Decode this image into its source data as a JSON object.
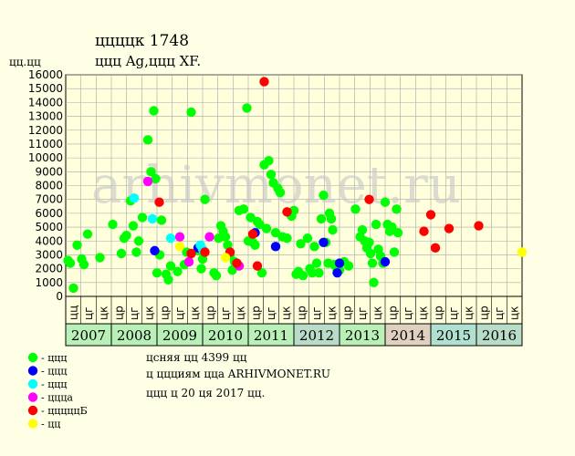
{
  "header": {
    "title": "ццццк 1748",
    "subtitle": "ццц Ag,ццц XF.",
    "yunit": "цц.цц"
  },
  "watermark": "arhivmonet.ru",
  "footer": {
    "line1": "цcняя цц 4399 цц",
    "line2": "ц ццциям цца ARHIVMONET.RU",
    "line3": "ццц ц 20 ця 2017 цц."
  },
  "colors": {
    "background": "#ffffe6",
    "plot": "#ffffdc",
    "grid": "#a8a8a8"
  },
  "chart_data": {
    "type": "scatter",
    "ylim": [
      0,
      16000
    ],
    "yticks": [
      0,
      1000,
      2000,
      3000,
      4000,
      5000,
      6000,
      7000,
      8000,
      9000,
      10000,
      11000,
      12000,
      13000,
      14000,
      15000,
      16000
    ],
    "grid": true,
    "legend_position": "bottom-left",
    "x_month_labels": [
      "цц",
      "цг",
      "цк",
      "цр",
      "цг",
      "цк",
      "цр",
      "цг",
      "цк",
      "цр",
      "цг",
      "цк",
      "цр",
      "цг",
      "цк",
      "цр",
      "цг",
      "цк",
      "цр",
      "цг",
      "цк",
      "цр",
      "цг",
      "цк",
      "цр",
      "цг",
      "цк",
      "цр",
      "цг",
      "цк"
    ],
    "years": [
      {
        "label": "2007",
        "color": "#b8f0b8"
      },
      {
        "label": "2008",
        "color": "#b8f0b8"
      },
      {
        "label": "2009",
        "color": "#b8f0b8"
      },
      {
        "label": "2010",
        "color": "#b8f0b8"
      },
      {
        "label": "2011",
        "color": "#b8f0b8"
      },
      {
        "label": "2012",
        "color": "#b8dcc8"
      },
      {
        "label": "2013",
        "color": "#b8f0b8"
      },
      {
        "label": "2014",
        "color": "#e0d0c0"
      },
      {
        "label": "2015",
        "color": "#b0e0d0"
      },
      {
        "label": "2016",
        "color": "#b8dcc8"
      }
    ],
    "series": [
      {
        "name": "- ццц",
        "color": "#00ff00",
        "points": [
          [
            2007.05,
            2600
          ],
          [
            2007.1,
            2400
          ],
          [
            2007.17,
            600
          ],
          [
            2007.25,
            3700
          ],
          [
            2007.35,
            2700
          ],
          [
            2007.4,
            2300
          ],
          [
            2007.48,
            4500
          ],
          [
            2007.75,
            2800
          ],
          [
            2008.03,
            5200
          ],
          [
            2008.22,
            3100
          ],
          [
            2008.28,
            4200
          ],
          [
            2008.33,
            4400
          ],
          [
            2008.42,
            6900
          ],
          [
            2008.48,
            5100
          ],
          [
            2008.55,
            3200
          ],
          [
            2008.6,
            4000
          ],
          [
            2008.68,
            5700
          ],
          [
            2008.8,
            11300
          ],
          [
            2008.87,
            9000
          ],
          [
            2008.93,
            13400
          ],
          [
            2008.97,
            8500
          ],
          [
            2009.0,
            1700
          ],
          [
            2009.06,
            3000
          ],
          [
            2009.1,
            5500
          ],
          [
            2009.2,
            1600
          ],
          [
            2009.25,
            1200
          ],
          [
            2009.3,
            2200
          ],
          [
            2009.45,
            1800
          ],
          [
            2009.6,
            2300
          ],
          [
            2009.65,
            3200
          ],
          [
            2009.75,
            13300
          ],
          [
            2009.9,
            3300
          ],
          [
            2009.97,
            2000
          ],
          [
            2010.0,
            2700
          ],
          [
            2010.05,
            7000
          ],
          [
            2010.25,
            1700
          ],
          [
            2010.3,
            1500
          ],
          [
            2010.35,
            4200
          ],
          [
            2010.4,
            5100
          ],
          [
            2010.45,
            4700
          ],
          [
            2010.5,
            4300
          ],
          [
            2010.55,
            3700
          ],
          [
            2010.6,
            3000
          ],
          [
            2010.65,
            1900
          ],
          [
            2010.7,
            2500
          ],
          [
            2010.8,
            6200
          ],
          [
            2010.9,
            6300
          ],
          [
            2010.97,
            13600
          ],
          [
            2011.0,
            4000
          ],
          [
            2011.05,
            5700
          ],
          [
            2011.1,
            3900
          ],
          [
            2011.15,
            3700
          ],
          [
            2011.2,
            5400
          ],
          [
            2011.25,
            5200
          ],
          [
            2011.3,
            1700
          ],
          [
            2011.35,
            9500
          ],
          [
            2011.4,
            4900
          ],
          [
            2011.45,
            9800
          ],
          [
            2011.5,
            8800
          ],
          [
            2011.55,
            8200
          ],
          [
            2011.6,
            4600
          ],
          [
            2011.65,
            7800
          ],
          [
            2011.7,
            7500
          ],
          [
            2011.75,
            4300
          ],
          [
            2011.85,
            4200
          ],
          [
            2011.9,
            6000
          ],
          [
            2011.95,
            5800
          ],
          [
            2012.0,
            6200
          ],
          [
            2012.05,
            1600
          ],
          [
            2012.1,
            1800
          ],
          [
            2012.15,
            3800
          ],
          [
            2012.2,
            1500
          ],
          [
            2012.3,
            4200
          ],
          [
            2012.35,
            2000
          ],
          [
            2012.4,
            1700
          ],
          [
            2012.45,
            3600
          ],
          [
            2012.5,
            2400
          ],
          [
            2012.55,
            1700
          ],
          [
            2012.6,
            5600
          ],
          [
            2012.65,
            7300
          ],
          [
            2012.7,
            3900
          ],
          [
            2012.75,
            2400
          ],
          [
            2012.78,
            6000
          ],
          [
            2012.82,
            5600
          ],
          [
            2012.85,
            4800
          ],
          [
            2012.88,
            2300
          ],
          [
            2012.95,
            1900
          ],
          [
            2013.0,
            1900
          ],
          [
            2013.1,
            2500
          ],
          [
            2013.2,
            2200
          ],
          [
            2013.35,
            6300
          ],
          [
            2013.45,
            4300
          ],
          [
            2013.5,
            4800
          ],
          [
            2013.55,
            4000
          ],
          [
            2013.6,
            3500
          ],
          [
            2013.65,
            3900
          ],
          [
            2013.68,
            3100
          ],
          [
            2013.72,
            2400
          ],
          [
            2013.75,
            1000
          ],
          [
            2013.8,
            5200
          ],
          [
            2013.85,
            3400
          ],
          [
            2013.9,
            2900
          ],
          [
            2013.95,
            2400
          ],
          [
            2014.0,
            6800
          ],
          [
            2014.05,
            5200
          ],
          [
            2014.1,
            4700
          ],
          [
            2014.15,
            5000
          ],
          [
            2014.2,
            3200
          ],
          [
            2014.25,
            6300
          ],
          [
            2014.28,
            4600
          ]
        ]
      },
      {
        "name": "- ццц",
        "color": "#0000ff",
        "points": [
          [
            2008.95,
            3300
          ],
          [
            2009.9,
            3500
          ],
          [
            2011.15,
            4600
          ],
          [
            2011.6,
            3600
          ],
          [
            2012.65,
            3900
          ],
          [
            2012.95,
            1700
          ],
          [
            2013.0,
            2400
          ],
          [
            2014.0,
            2500
          ]
        ]
      },
      {
        "name": "- ццц",
        "color": "#00ffff",
        "points": [
          [
            2008.5,
            7100
          ],
          [
            2008.9,
            5600
          ],
          [
            2009.3,
            4200
          ],
          [
            2009.95,
            3700
          ],
          [
            2010.0,
            3400
          ]
        ]
      },
      {
        "name": "- цццa",
        "color": "#ff00ff",
        "points": [
          [
            2008.8,
            8300
          ],
          [
            2009.5,
            4300
          ],
          [
            2009.7,
            2500
          ],
          [
            2010.15,
            4300
          ],
          [
            2010.8,
            2200
          ]
        ]
      },
      {
        "name": "- цццццБ",
        "color": "#ff0000",
        "points": [
          [
            2009.05,
            6800
          ],
          [
            2009.75,
            3100
          ],
          [
            2010.05,
            3200
          ],
          [
            2010.6,
            3200
          ],
          [
            2010.75,
            2400
          ],
          [
            2011.1,
            4500
          ],
          [
            2011.2,
            2200
          ],
          [
            2011.35,
            15500
          ],
          [
            2011.85,
            6100
          ],
          [
            2013.65,
            7000
          ],
          [
            2014.85,
            4700
          ],
          [
            2015.0,
            5900
          ],
          [
            2015.1,
            3500
          ],
          [
            2015.4,
            4900
          ],
          [
            2016.05,
            5100
          ]
        ]
      },
      {
        "name": "- цц",
        "color": "#ffff00",
        "points": [
          [
            2009.5,
            3600
          ],
          [
            2010.5,
            2800
          ],
          [
            2017.0,
            3200
          ]
        ]
      }
    ]
  }
}
